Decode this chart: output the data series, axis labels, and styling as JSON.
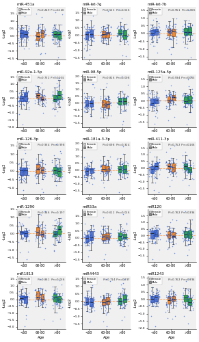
{
  "panels": [
    {
      "title": "miR-451a",
      "pf": "0.249",
      "pm": "0.140"
    },
    {
      "title": "miR-let-7g",
      "pf": "0.523",
      "pm": "0.016"
    },
    {
      "title": "miR-let-7b",
      "pf": "0.951",
      "pm": "0.006"
    },
    {
      "title": "miR-92a-1-5p",
      "pf": "0.752",
      "pm": "0.001"
    },
    {
      "title": "miR-98-5p",
      "pf": "0.816",
      "pm": "0.008"
    },
    {
      "title": "miR-125a-5p",
      "pf": "0.594",
      "pm": "0.063"
    },
    {
      "title": "miR-126-3p",
      "pf": "0.934",
      "pm": "0.998"
    },
    {
      "title": "miR-181a-3-3p",
      "pf": "0.698",
      "pm": "0.324"
    },
    {
      "title": "miR-411-3p",
      "pf": "0.752",
      "pm": "0.166"
    },
    {
      "title": "miR-1290",
      "pf": "0.946",
      "pm": "0.197"
    },
    {
      "title": "miR53a",
      "pf": "0.612",
      "pm": "0.016"
    },
    {
      "title": "miR120",
      "pf": "0.762",
      "pm": "0.394"
    },
    {
      "title": "miR1813",
      "pf": "0.861",
      "pm": "0.036"
    },
    {
      "title": "miR4443",
      "pf": "0.714",
      "pm": "0.297"
    },
    {
      "title": "miR1243",
      "pf": "0.762",
      "pm": "0.394"
    }
  ],
  "age_groups": [
    "<60",
    "60-80",
    ">80"
  ],
  "age_colors_fill": [
    "#5577cc",
    "#ee8833",
    "#33aa44"
  ],
  "age_colors_edge": [
    "#334499",
    "#aa5500",
    "#116622"
  ],
  "dashed_line_color": "#ff9944",
  "scatter_color": "#2255cc",
  "background_color": "#ffffff",
  "panel_bg": "#f0f0f0",
  "ylabel": "-Log2",
  "xlabel": "Age",
  "nrows": 5,
  "ncols": 3,
  "legend_labels": [
    "Female",
    "Male"
  ]
}
